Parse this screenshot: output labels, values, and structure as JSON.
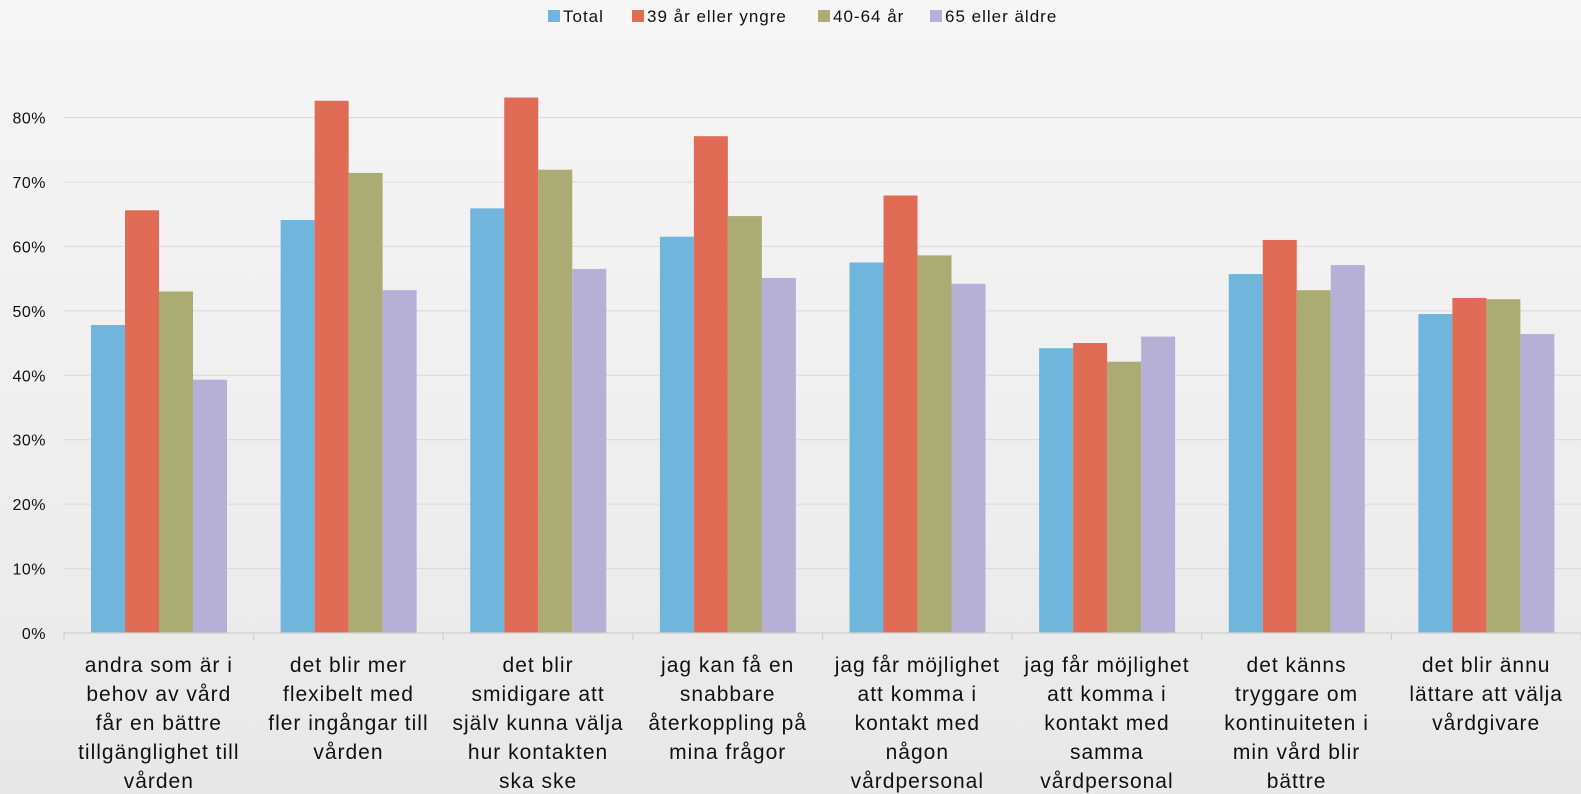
{
  "chart_data": {
    "type": "bar",
    "title": "",
    "xlabel": "",
    "ylabel": "",
    "ylim": [
      0,
      80
    ],
    "yticks": [
      "0%",
      "10%",
      "20%",
      "30%",
      "40%",
      "50%",
      "60%",
      "70%",
      "80%"
    ],
    "grid": true,
    "legend_position": "top",
    "categories": [
      [
        "andra som är i",
        "behov av vård",
        "får en bättre",
        "tillgänglighet till",
        "vården"
      ],
      [
        "det blir mer",
        "flexibelt med",
        "fler ingångar till",
        "vården"
      ],
      [
        "det blir",
        "smidigare att",
        "själv kunna välja",
        "hur kontakten",
        "ska ske"
      ],
      [
        "jag kan få en",
        "snabbare",
        "återkoppling på",
        "mina frågor"
      ],
      [
        "jag får möjlighet",
        "att komma i",
        "kontakt med",
        "någon",
        "vårdpersonal"
      ],
      [
        "jag får möjlighet",
        "att komma i",
        "kontakt med",
        "samma",
        "vårdpersonal"
      ],
      [
        "det känns",
        "tryggare om",
        "kontinuiteten i",
        "min vård blir",
        "bättre"
      ],
      [
        "det blir ännu",
        "lättare att välja",
        "vårdgivare"
      ]
    ],
    "series": [
      {
        "name": "Total",
        "color": "#70b5db",
        "values": [
          47.8,
          64.1,
          65.9,
          61.5,
          57.5,
          44.2,
          55.7,
          49.5
        ]
      },
      {
        "name": "39 år eller yngre",
        "color": "#e06c56",
        "values": [
          65.6,
          82.6,
          83.1,
          77.1,
          67.9,
          45.0,
          61.0,
          52.0
        ]
      },
      {
        "name": "40-64 år",
        "color": "#abab74",
        "values": [
          53.0,
          71.4,
          71.9,
          64.7,
          58.6,
          42.1,
          53.2,
          51.8
        ]
      },
      {
        "name": "65 eller äldre",
        "color": "#b6b0d6",
        "values": [
          39.3,
          53.2,
          56.5,
          55.1,
          54.2,
          46.0,
          57.1,
          46.4
        ]
      }
    ]
  }
}
